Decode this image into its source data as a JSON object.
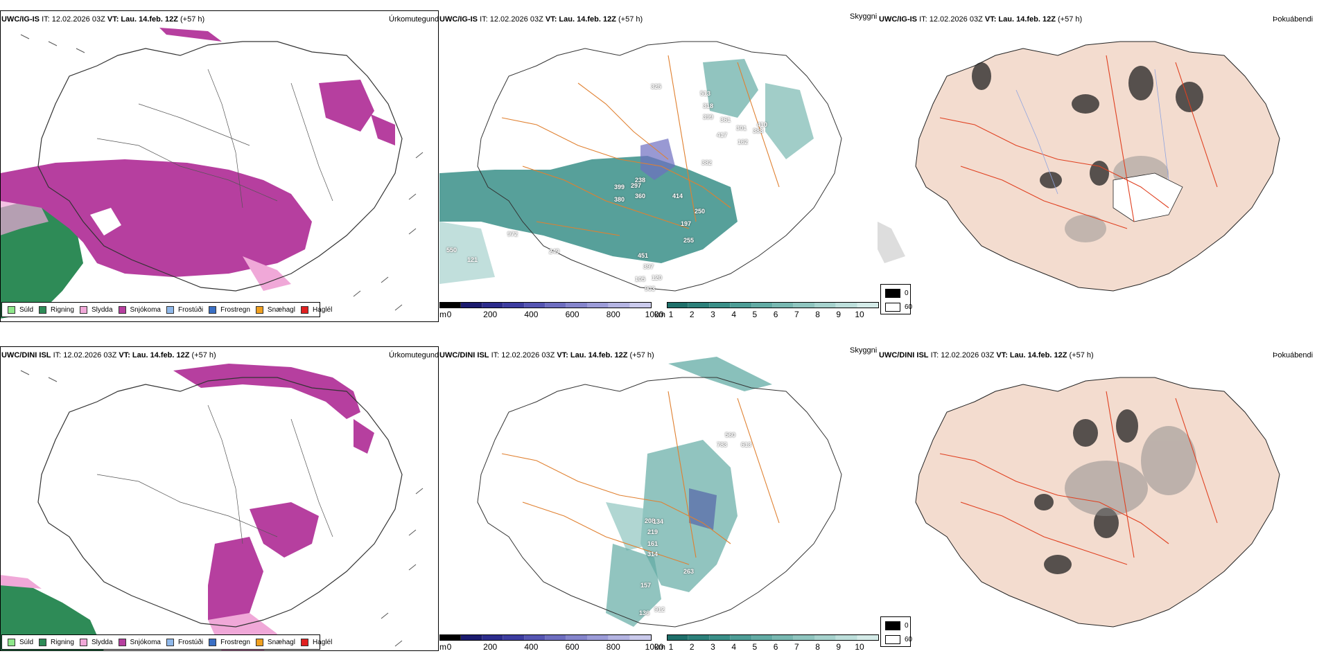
{
  "rows": [
    {
      "precip": {
        "model": "UWC/IG-IS",
        "it": "IT: 12.02.2026 03Z",
        "vt_label": "VT:",
        "vt": "Lau. 14.feb. 12Z",
        "lead": "(+57 h)",
        "title": "Úrkomutegund"
      },
      "cloud": {
        "model": "UWC/IG-IS",
        "it": "IT: 12.02.2026 03Z",
        "vt_label": "VT:",
        "vt": "Lau. 14.feb. 12Z",
        "lead": "(+57 h)",
        "title": "Skyggni"
      },
      "fog": {
        "model": "UWC/IG-IS",
        "it": "IT: 12.02.2026 03Z",
        "vt_label": "VT:",
        "vt": "Lau. 14.feb. 12Z",
        "lead": "(+57 h)",
        "title": "Þokuábendi"
      },
      "numbers": [
        "513",
        "318",
        "399",
        "361",
        "417",
        "301",
        "382",
        "388",
        "410",
        "399",
        "297",
        "380",
        "360",
        "238",
        "414",
        "250",
        "197",
        "255",
        "972",
        "249",
        "550",
        "121",
        "397",
        "451",
        "105",
        "120",
        "903",
        "325",
        "162"
      ]
    },
    {
      "precip": {
        "model": "UWC/DINI ISL",
        "it": "IT: 12.02.2026 03Z",
        "vt_label": "VT:",
        "vt": "Lau. 14.feb. 12Z",
        "lead": "(+57 h)",
        "title": "Úrkomutegund"
      },
      "cloud": {
        "model": "UWC/DINI ISL",
        "it": "IT: 12.02.2026 03Z",
        "vt_label": "VT:",
        "vt": "Lau. 14.feb. 12Z",
        "lead": "(+57 h)",
        "title": "Skyggni"
      },
      "fog": {
        "model": "UWC/DINI ISL",
        "it": "IT: 12.02.2026 03Z",
        "vt_label": "VT:",
        "vt": "Lau. 14.feb. 12Z",
        "lead": "(+57 h)",
        "title": "Þokuábendi"
      },
      "numbers": [
        "560",
        "783",
        "613",
        "208",
        "219",
        "134",
        "161",
        "314",
        "263",
        "157",
        "136",
        "912"
      ]
    }
  ],
  "legend": [
    {
      "label": "Súld",
      "color": "#8ee78a"
    },
    {
      "label": "Rigning",
      "color": "#2e8b57"
    },
    {
      "label": "Slydda",
      "color": "#f0a8d8"
    },
    {
      "label": "Snjókoma",
      "color": "#b63f9f"
    },
    {
      "label": "Frostúði",
      "color": "#8fb8ea"
    },
    {
      "label": "Frostregn",
      "color": "#3a6fc4"
    },
    {
      "label": "Snæhagl",
      "color": "#f0a020"
    },
    {
      "label": "Haglél",
      "color": "#e02020"
    }
  ],
  "cloudbase": {
    "unit": "m",
    "ticks": [
      "0",
      "200",
      "400",
      "600",
      "800",
      "1000"
    ],
    "colors": [
      "#000000",
      "#1b1b6e",
      "#2c2c8c",
      "#3d3da0",
      "#5555b2",
      "#6e6ec0",
      "#8585cc",
      "#9c9cd8",
      "#b4b4e2",
      "#cacaec"
    ]
  },
  "visibility": {
    "unit": "km",
    "ticks": [
      "1",
      "2",
      "3",
      "4",
      "5",
      "6",
      "7",
      "8",
      "9",
      "10"
    ],
    "colors": [
      "#1e6f6a",
      "#2c807a",
      "#3a8f88",
      "#4d9d96",
      "#62aba4",
      "#78b8b1",
      "#8fc5bf",
      "#a6d2cd",
      "#bddfdb",
      "#d4ebe8"
    ]
  },
  "fogscale": {
    "ticks": [
      "0",
      "60"
    ]
  }
}
